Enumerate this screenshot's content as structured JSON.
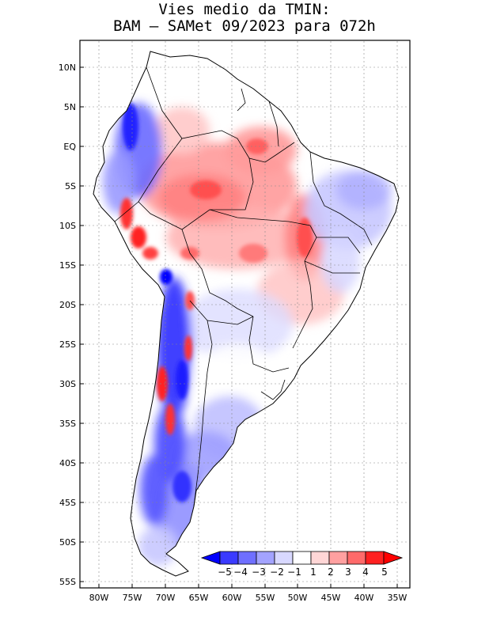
{
  "title": {
    "line1": "Vies medio da TMIN:",
    "line2": "BAM – SAMet 09/2023  para 072h"
  },
  "axes": {
    "lat_labels": [
      "10N",
      "5N",
      "EQ",
      "5S",
      "10S",
      "15S",
      "20S",
      "25S",
      "30S",
      "35S",
      "40S",
      "45S",
      "50S",
      "55S"
    ],
    "lon_labels": [
      "80W",
      "75W",
      "70W",
      "65W",
      "60W",
      "55W",
      "50W",
      "45W",
      "40W",
      "35W"
    ],
    "lat_range": [
      -55.5,
      13
    ],
    "lon_range": [
      -83,
      -34
    ],
    "grid": true,
    "grid_style": "dotted"
  },
  "colorbar": {
    "labels": [
      "−5",
      "−4",
      "−3",
      "−2",
      "−1",
      "1",
      "2",
      "3",
      "4",
      "5"
    ],
    "colors": [
      "#0000ff",
      "#3b3bff",
      "#6f6fff",
      "#a3a3ff",
      "#d8d8ff",
      "#ffffff",
      "#ffd6d6",
      "#ffa0a0",
      "#ff6a6a",
      "#ff2020",
      "#ff0000"
    ],
    "placement": "bottom-right, inside map"
  },
  "colors": {
    "cold_strong": "#1a1aff",
    "cold_mid": "#7a7aff",
    "cold_light": "#c9c9ff",
    "warm_light": "#ffd0d0",
    "warm_mid": "#ff8a8a",
    "warm_strong": "#ff2a2a",
    "land": "#ffffff",
    "border": "#000000"
  }
}
